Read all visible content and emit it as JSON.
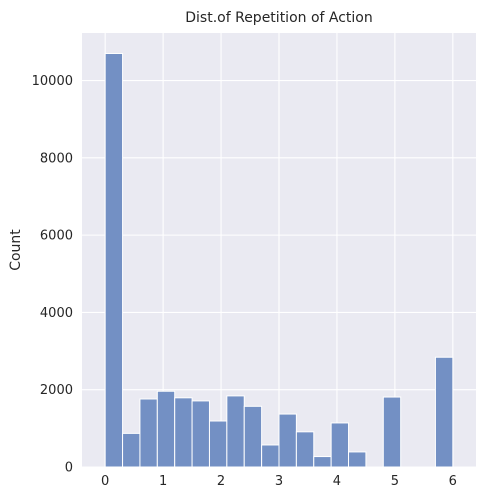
{
  "chart_data": {
    "type": "bar",
    "title": "Dist.of Repetition of Action",
    "xlabel": "",
    "ylabel": "Count",
    "xlim": [
      -0.4,
      6.4
    ],
    "ylim": [
      0,
      11230
    ],
    "grid": true,
    "xticks": [
      0,
      1,
      2,
      3,
      4,
      5,
      6
    ],
    "yticks": [
      0,
      2000,
      4000,
      6000,
      8000,
      10000
    ],
    "bin_width": 0.3,
    "bins": [
      {
        "x0": 0.0,
        "count": 10700
      },
      {
        "x0": 0.3,
        "count": 870
      },
      {
        "x0": 0.6,
        "count": 1760
      },
      {
        "x0": 0.9,
        "count": 1960
      },
      {
        "x0": 1.2,
        "count": 1790
      },
      {
        "x0": 1.5,
        "count": 1710
      },
      {
        "x0": 1.8,
        "count": 1190
      },
      {
        "x0": 2.1,
        "count": 1840
      },
      {
        "x0": 2.4,
        "count": 1570
      },
      {
        "x0": 2.7,
        "count": 570
      },
      {
        "x0": 3.0,
        "count": 1370
      },
      {
        "x0": 3.3,
        "count": 910
      },
      {
        "x0": 3.6,
        "count": 270
      },
      {
        "x0": 3.9,
        "count": 1140
      },
      {
        "x0": 4.2,
        "count": 390
      },
      {
        "x0": 4.5,
        "count": 0
      },
      {
        "x0": 4.8,
        "count": 1810
      },
      {
        "x0": 5.1,
        "count": 0
      },
      {
        "x0": 5.4,
        "count": 0
      },
      {
        "x0": 5.7,
        "count": 2840
      }
    ],
    "bar_color": "#7390c4"
  }
}
